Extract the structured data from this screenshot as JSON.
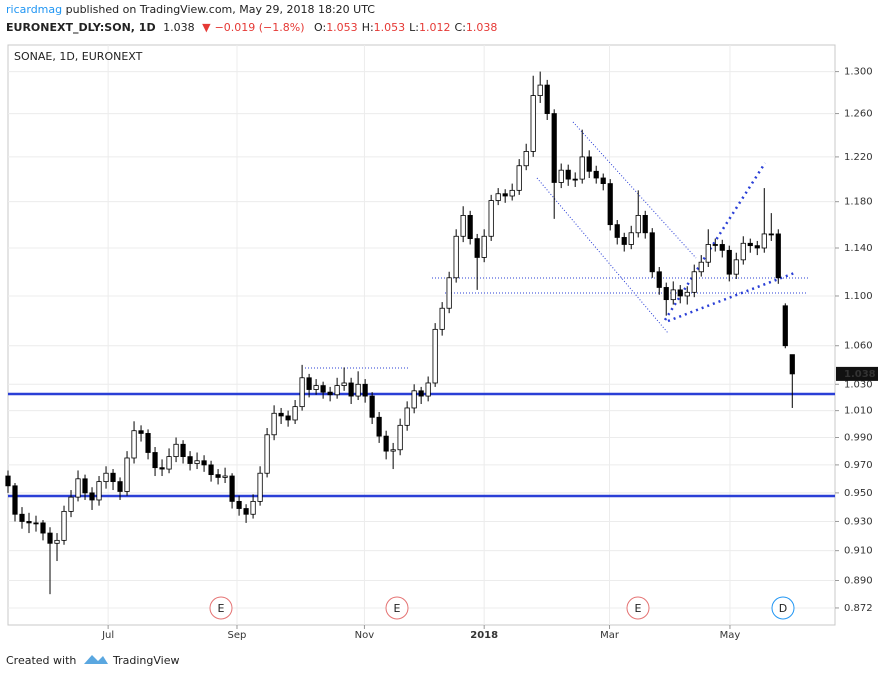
{
  "header": {
    "author": "ricardmag",
    "published": " published on TradingView.com, May 29, 2018 18:20 UTC",
    "symbol": "EURONEXT_DLY:SON, 1D",
    "last": "1.038",
    "arrow": "▼",
    "change": "−0.019 (−1.8%)",
    "ohlc_items": [
      {
        "label": "O:",
        "value": "1.053"
      },
      {
        "label": "H:",
        "value": "1.053"
      },
      {
        "label": "L:",
        "value": "1.012"
      },
      {
        "label": "C:",
        "value": "1.038"
      }
    ]
  },
  "chart_data": {
    "type": "candlestick",
    "title": "SONAE, 1D, EURONEXT",
    "log_scale": true,
    "grid": true,
    "up_color": "#ffffff",
    "down_color": "#000000",
    "wick_color": "#000000",
    "ylim": [
      0.861,
      1.326
    ],
    "yticks": [
      {
        "value": 1.3,
        "label": "1.300"
      },
      {
        "value": 1.26,
        "label": "1.260"
      },
      {
        "value": 1.22,
        "label": "1.220"
      },
      {
        "value": 1.18,
        "label": "1.180"
      },
      {
        "value": 1.14,
        "label": "1.140"
      },
      {
        "value": 1.1,
        "label": "1.100"
      },
      {
        "value": 1.06,
        "label": "1.060"
      },
      {
        "value": 1.03,
        "label": "1.030"
      },
      {
        "value": 1.01,
        "label": "1.010"
      },
      {
        "value": 0.99,
        "label": "0.990"
      },
      {
        "value": 0.97,
        "label": "0.970"
      },
      {
        "value": 0.95,
        "label": "0.950"
      },
      {
        "value": 0.93,
        "label": "0.930"
      },
      {
        "value": 0.91,
        "label": "0.910"
      },
      {
        "value": 0.89,
        "label": "0.890"
      },
      {
        "value": 0.872,
        "label": "0.872"
      }
    ],
    "xlim": [
      0,
      118.1
    ],
    "xticks": [
      {
        "value": 14.3,
        "label": "Jul"
      },
      {
        "value": 32.7,
        "label": "Sep"
      },
      {
        "value": 50.9,
        "label": "Nov"
      },
      {
        "value": 68,
        "label": "2018"
      },
      {
        "value": 85.9,
        "label": "Mar"
      },
      {
        "value": 103.1,
        "label": "May"
      }
    ],
    "events": [
      "E",
      "E",
      "E",
      "D"
    ],
    "ohlc": [
      [
        0.962,
        0.966,
        0.95,
        0.955
      ],
      [
        0.955,
        0.957,
        0.93,
        0.935
      ],
      [
        0.935,
        0.94,
        0.925,
        0.93
      ],
      [
        0.93,
        0.936,
        0.922,
        0.929
      ],
      [
        0.929,
        0.934,
        0.923,
        0.929
      ],
      [
        0.929,
        0.931,
        0.917,
        0.922
      ],
      [
        0.922,
        0.926,
        0.881,
        0.915
      ],
      [
        0.915,
        0.922,
        0.903,
        0.917
      ],
      [
        0.917,
        0.941,
        0.914,
        0.937
      ],
      [
        0.937,
        0.952,
        0.933,
        0.947
      ],
      [
        0.947,
        0.966,
        0.944,
        0.96
      ],
      [
        0.96,
        0.963,
        0.945,
        0.95
      ],
      [
        0.95,
        0.954,
        0.938,
        0.945
      ],
      [
        0.945,
        0.962,
        0.941,
        0.958
      ],
      [
        0.958,
        0.969,
        0.953,
        0.964
      ],
      [
        0.964,
        0.967,
        0.952,
        0.958
      ],
      [
        0.958,
        0.961,
        0.945,
        0.951
      ],
      [
        0.951,
        0.98,
        0.948,
        0.975
      ],
      [
        0.975,
        1.002,
        0.971,
        0.995
      ],
      [
        0.995,
        0.999,
        0.987,
        0.993
      ],
      [
        0.993,
        0.996,
        0.974,
        0.979
      ],
      [
        0.979,
        0.983,
        0.962,
        0.968
      ],
      [
        0.968,
        0.974,
        0.962,
        0.967
      ],
      [
        0.967,
        0.982,
        0.964,
        0.976
      ],
      [
        0.976,
        0.99,
        0.972,
        0.985
      ],
      [
        0.985,
        0.988,
        0.971,
        0.976
      ],
      [
        0.976,
        0.98,
        0.966,
        0.971
      ],
      [
        0.971,
        0.979,
        0.967,
        0.973
      ],
      [
        0.973,
        0.977,
        0.965,
        0.97
      ],
      [
        0.97,
        0.973,
        0.958,
        0.963
      ],
      [
        0.963,
        0.967,
        0.956,
        0.961
      ],
      [
        0.961,
        0.968,
        0.957,
        0.962
      ],
      [
        0.962,
        0.964,
        0.939,
        0.944
      ],
      [
        0.944,
        0.948,
        0.934,
        0.939
      ],
      [
        0.939,
        0.942,
        0.929,
        0.935
      ],
      [
        0.935,
        0.949,
        0.932,
        0.944
      ],
      [
        0.944,
        0.969,
        0.941,
        0.964
      ],
      [
        0.964,
        0.997,
        0.961,
        0.992
      ],
      [
        0.992,
        1.014,
        0.988,
        1.008
      ],
      [
        1.008,
        1.012,
        1.0,
        1.006
      ],
      [
        1.006,
        1.01,
        0.998,
        1.003
      ],
      [
        1.003,
        1.018,
        1.0,
        1.013
      ],
      [
        1.013,
        1.045,
        1.01,
        1.035
      ],
      [
        1.035,
        1.038,
        1.02,
        1.026
      ],
      [
        1.026,
        1.034,
        1.022,
        1.029
      ],
      [
        1.029,
        1.032,
        1.019,
        1.024
      ],
      [
        1.024,
        1.028,
        1.017,
        1.022
      ],
      [
        1.022,
        1.035,
        1.019,
        1.029
      ],
      [
        1.029,
        1.043,
        1.025,
        1.031
      ],
      [
        1.031,
        1.035,
        1.015,
        1.021
      ],
      [
        1.021,
        1.04,
        1.018,
        1.03
      ],
      [
        1.03,
        1.034,
        1.016,
        1.021
      ],
      [
        1.021,
        1.024,
        1.0,
        1.005
      ],
      [
        1.005,
        1.009,
        0.986,
        0.991
      ],
      [
        0.991,
        0.995,
        0.974,
        0.98
      ],
      [
        0.98,
        0.986,
        0.967,
        0.981
      ],
      [
        0.981,
        1.004,
        0.977,
        0.999
      ],
      [
        0.999,
        1.017,
        0.995,
        1.012
      ],
      [
        1.012,
        1.03,
        1.008,
        1.025
      ],
      [
        1.025,
        1.028,
        1.015,
        1.021
      ],
      [
        1.021,
        1.036,
        1.017,
        1.031
      ],
      [
        1.031,
        1.078,
        1.028,
        1.073
      ],
      [
        1.073,
        1.095,
        1.068,
        1.09
      ],
      [
        1.09,
        1.12,
        1.086,
        1.115
      ],
      [
        1.115,
        1.156,
        1.111,
        1.15
      ],
      [
        1.15,
        1.176,
        1.145,
        1.168
      ],
      [
        1.168,
        1.172,
        1.143,
        1.148
      ],
      [
        1.148,
        1.152,
        1.105,
        1.132
      ],
      [
        1.132,
        1.156,
        1.128,
        1.15
      ],
      [
        1.15,
        1.186,
        1.146,
        1.181
      ],
      [
        1.181,
        1.192,
        1.177,
        1.187
      ],
      [
        1.187,
        1.191,
        1.179,
        1.185
      ],
      [
        1.185,
        1.196,
        1.181,
        1.19
      ],
      [
        1.19,
        1.218,
        1.186,
        1.212
      ],
      [
        1.212,
        1.232,
        1.208,
        1.225
      ],
      [
        1.225,
        1.296,
        1.22,
        1.277
      ],
      [
        1.277,
        1.3,
        1.27,
        1.287
      ],
      [
        1.287,
        1.292,
        1.254,
        1.26
      ],
      [
        1.26,
        1.264,
        1.165,
        1.197
      ],
      [
        1.197,
        1.214,
        1.192,
        1.208
      ],
      [
        1.208,
        1.213,
        1.194,
        1.2
      ],
      [
        1.2,
        1.206,
        1.193,
        1.2
      ],
      [
        1.2,
        1.245,
        1.196,
        1.22
      ],
      [
        1.22,
        1.226,
        1.201,
        1.207
      ],
      [
        1.207,
        1.212,
        1.196,
        1.201
      ],
      [
        1.201,
        1.205,
        1.19,
        1.196
      ],
      [
        1.196,
        1.2,
        1.155,
        1.16
      ],
      [
        1.16,
        1.164,
        1.143,
        1.149
      ],
      [
        1.149,
        1.153,
        1.137,
        1.143
      ],
      [
        1.143,
        1.159,
        1.139,
        1.153
      ],
      [
        1.153,
        1.19,
        1.149,
        1.168
      ],
      [
        1.168,
        1.172,
        1.148,
        1.153
      ],
      [
        1.153,
        1.157,
        1.115,
        1.12
      ],
      [
        1.12,
        1.124,
        1.101,
        1.107
      ],
      [
        1.107,
        1.111,
        1.084,
        1.097
      ],
      [
        1.097,
        1.112,
        1.093,
        1.105
      ],
      [
        1.105,
        1.109,
        1.094,
        1.1
      ],
      [
        1.1,
        1.108,
        1.093,
        1.103
      ],
      [
        1.103,
        1.126,
        1.099,
        1.12
      ],
      [
        1.12,
        1.134,
        1.116,
        1.128
      ],
      [
        1.128,
        1.156,
        1.124,
        1.143
      ],
      [
        1.143,
        1.148,
        1.137,
        1.143
      ],
      [
        1.143,
        1.147,
        1.132,
        1.138
      ],
      [
        1.138,
        1.142,
        1.112,
        1.118
      ],
      [
        1.118,
        1.136,
        1.114,
        1.13
      ],
      [
        1.13,
        1.15,
        1.126,
        1.144
      ],
      [
        1.144,
        1.148,
        1.136,
        1.142
      ],
      [
        1.142,
        1.146,
        1.134,
        1.14
      ],
      [
        1.14,
        1.192,
        1.136,
        1.152
      ],
      [
        1.152,
        1.17,
        1.146,
        1.152
      ],
      [
        1.152,
        1.156,
        1.11,
        1.115
      ],
      [
        1.092,
        1.094,
        1.058,
        1.06
      ],
      [
        1.053,
        1.053,
        1.012,
        1.038
      ]
    ]
  },
  "footer": {
    "created": "Created with",
    "brand": "TradingView"
  }
}
